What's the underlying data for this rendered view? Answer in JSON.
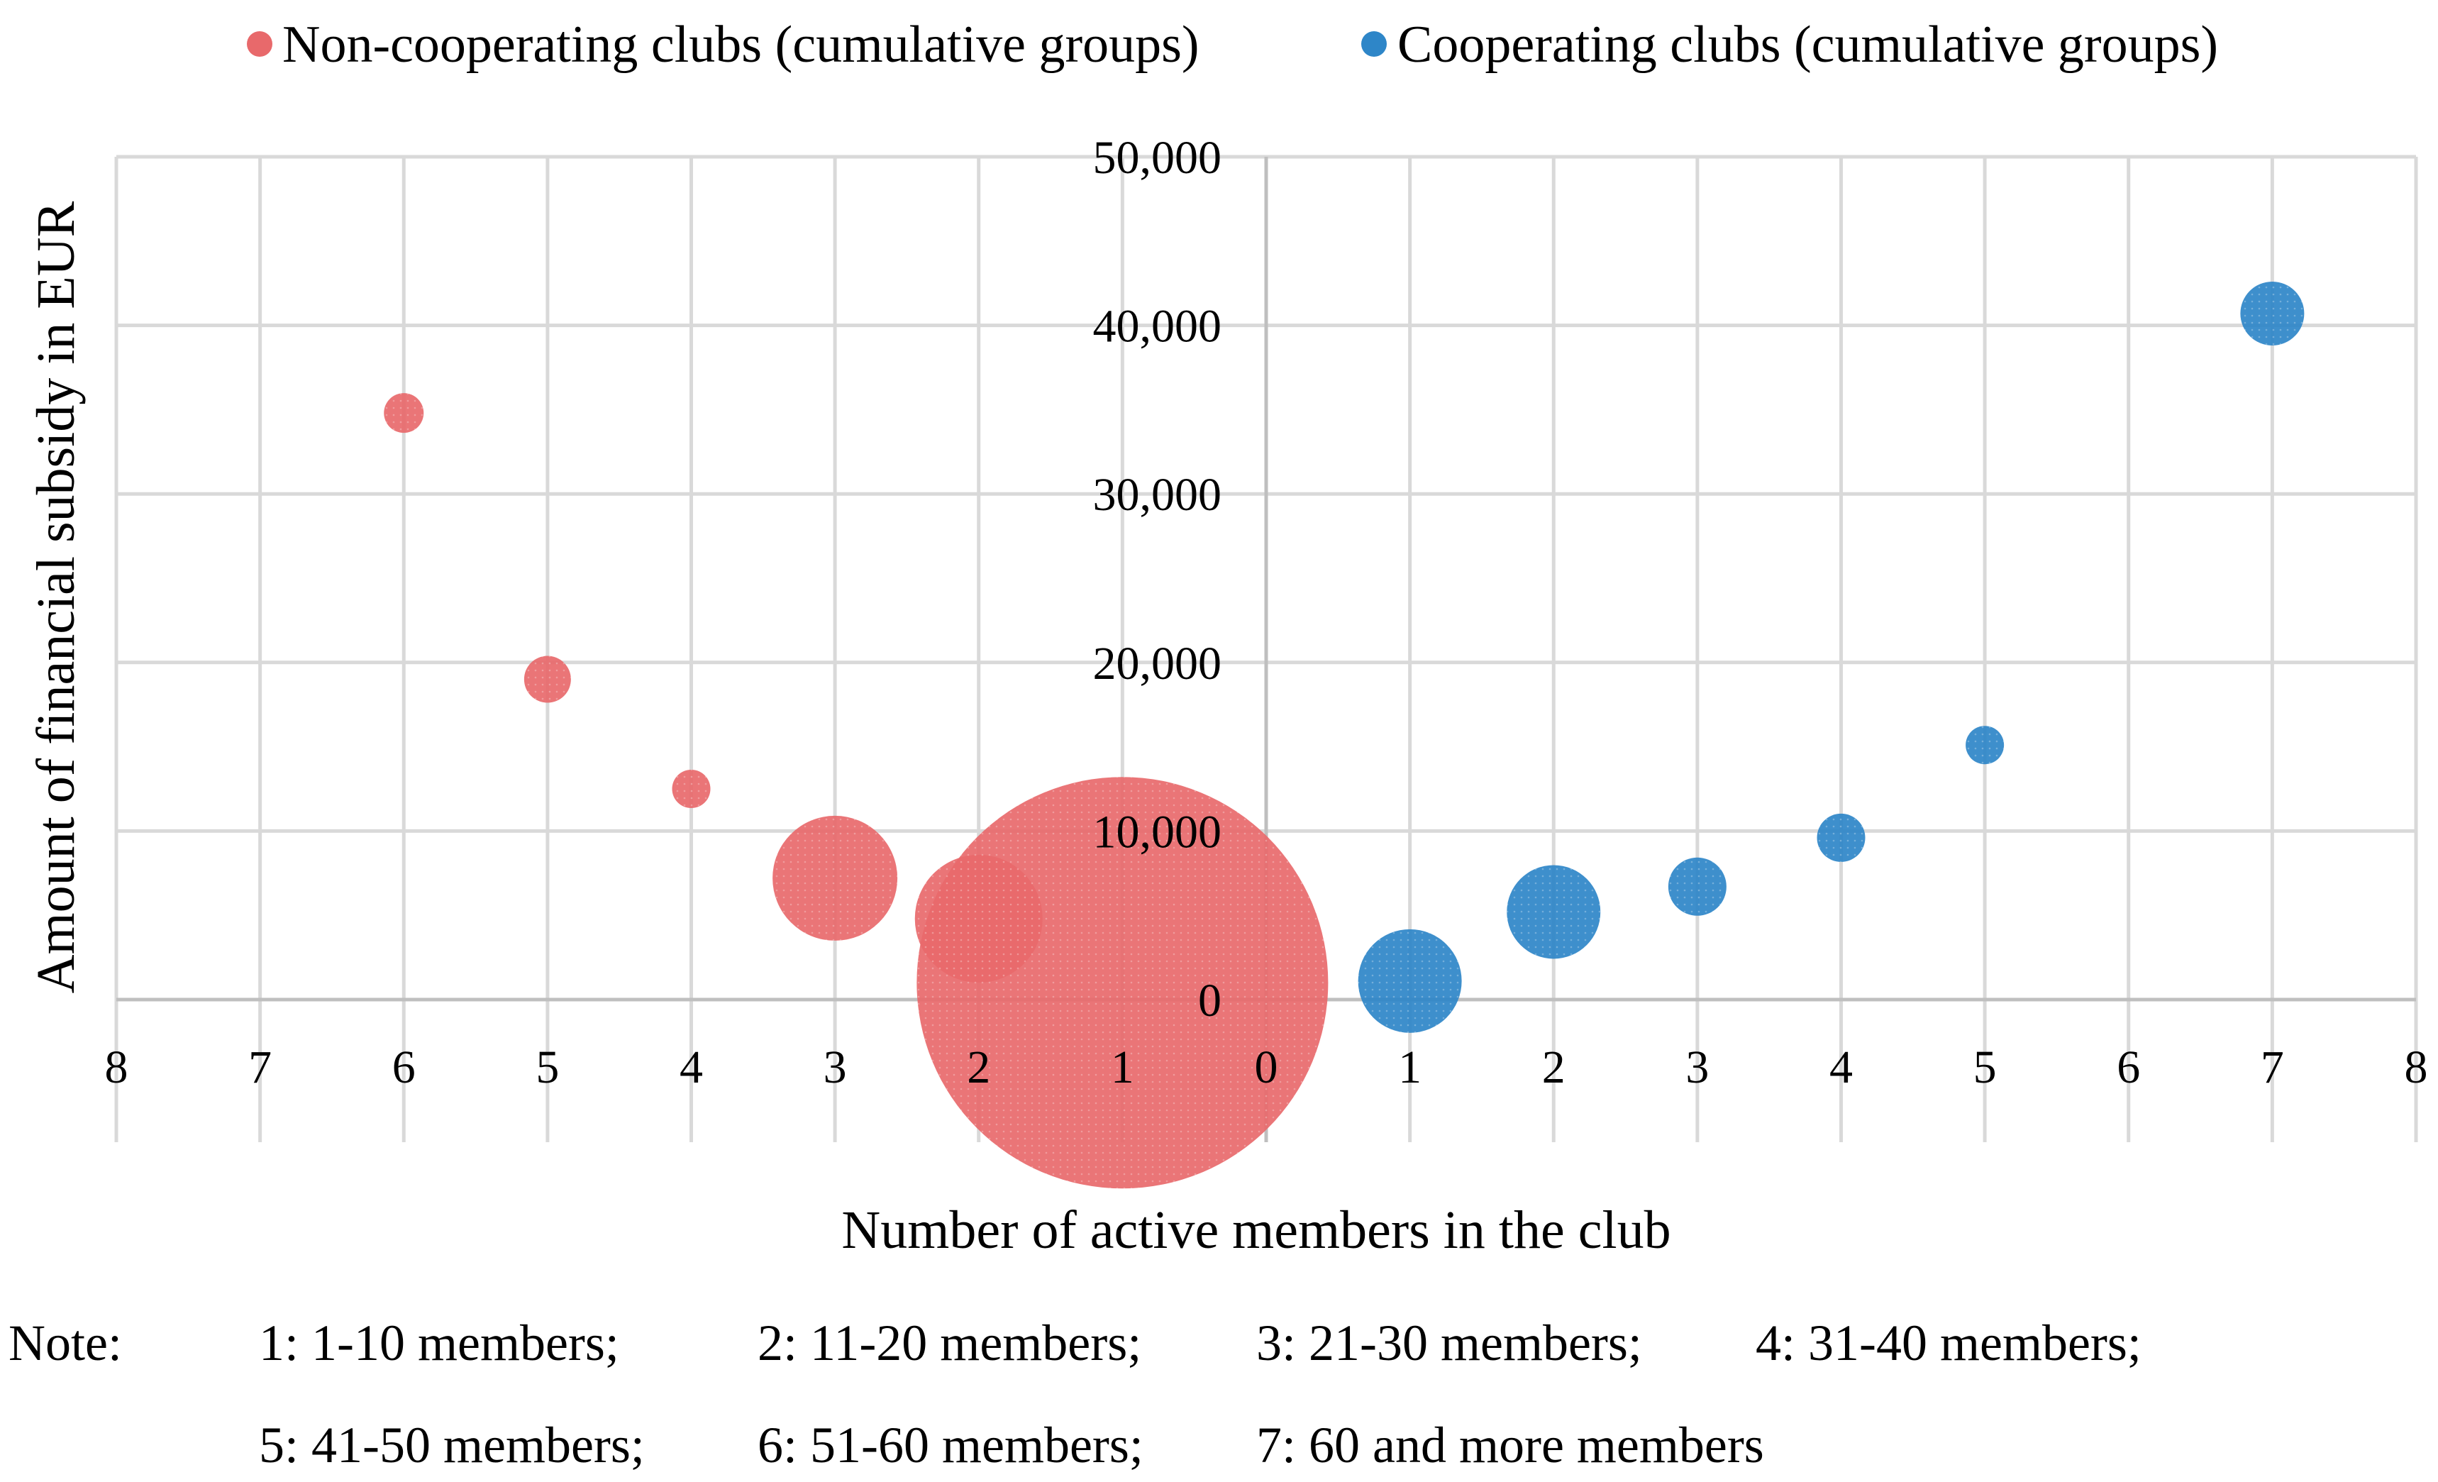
{
  "chart_data": {
    "type": "bubble",
    "title": "",
    "xlabel": "Number of active members in the club",
    "ylabel": "Amount of financial subsidy in EUR",
    "xlim": [
      -8,
      8
    ],
    "ylim": [
      0,
      50000
    ],
    "x_ticks": [
      -8,
      -7,
      -6,
      -5,
      -4,
      -3,
      -2,
      -1,
      0,
      1,
      2,
      3,
      4,
      5,
      6,
      7,
      8
    ],
    "x_tick_labels": [
      "8",
      "7",
      "6",
      "5",
      "4",
      "3",
      "2",
      "1",
      "0",
      "1",
      "2",
      "3",
      "4",
      "5",
      "6",
      "7",
      "8"
    ],
    "y_ticks": [
      0,
      10000,
      20000,
      30000,
      40000,
      50000
    ],
    "y_tick_labels": [
      "0",
      "10,000",
      "20,000",
      "30,000",
      "40,000",
      "50,000"
    ],
    "grid": true,
    "legend_position": "top",
    "series": [
      {
        "name": "Non-cooperating clubs (cumulative groups)",
        "color": "#e8696b",
        "points": [
          {
            "x": -1,
            "y": 1000,
            "size": 290
          },
          {
            "x": -2,
            "y": 4800,
            "size": 90
          },
          {
            "x": -3,
            "y": 7200,
            "size": 88
          },
          {
            "x": -4,
            "y": 12500,
            "size": 27
          },
          {
            "x": -5,
            "y": 19000,
            "size": 33
          },
          {
            "x": -6,
            "y": 34800,
            "size": 28
          }
        ]
      },
      {
        "name": "Cooperating clubs (cumulative groups)",
        "color": "#2e86c8",
        "points": [
          {
            "x": 1,
            "y": 1100,
            "size": 73
          },
          {
            "x": 2,
            "y": 5200,
            "size": 66
          },
          {
            "x": 3,
            "y": 6700,
            "size": 41
          },
          {
            "x": 4,
            "y": 9600,
            "size": 34
          },
          {
            "x": 5,
            "y": 15100,
            "size": 27
          },
          {
            "x": 7,
            "y": 40700,
            "size": 45
          }
        ]
      }
    ]
  },
  "note": {
    "label": "Note:",
    "items": [
      "1: 1-10 members;",
      "2: 11-20 members;",
      "3: 21-30 members;",
      "4: 31-40 members;",
      "5: 41-50 members;",
      "6: 51-60 members;",
      "7: 60 and more members"
    ]
  }
}
